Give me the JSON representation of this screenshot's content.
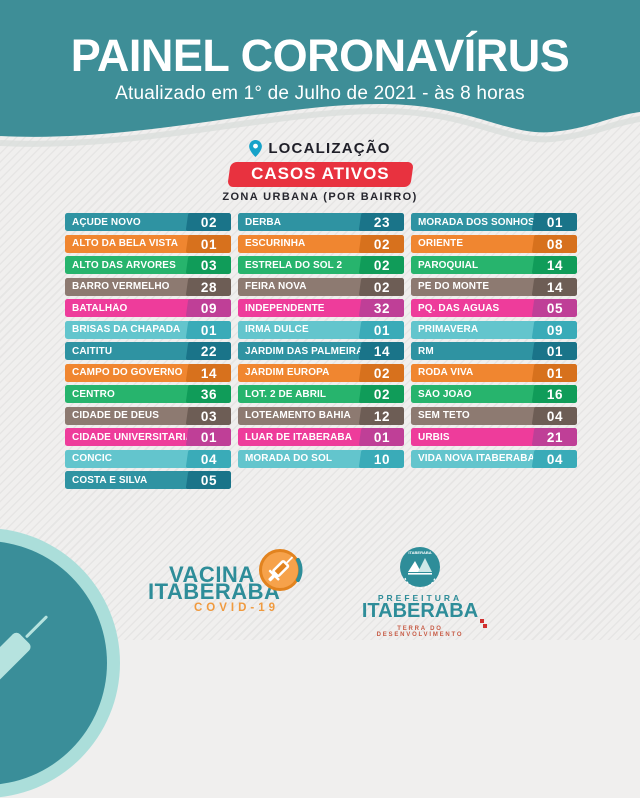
{
  "header": {
    "title": "PAINEL CORONAVÍRUS",
    "subtitle": "Atualizado em 1° de Julho de 2021 - às 8 horas",
    "background_color": "#3e8e97"
  },
  "location": {
    "label": "LOCALIZAÇÃO",
    "badge": "CASOS ATIVOS",
    "badge_color": "#e8323f",
    "zone": "ZONA URBANA (POR BAIRRO)"
  },
  "palette": {
    "teal": {
      "bar": "#2f93a2",
      "badge": "#1a7489"
    },
    "orange": {
      "bar": "#f08630",
      "badge": "#d7711d"
    },
    "green": {
      "bar": "#27b46d",
      "badge": "#109c59"
    },
    "taupe": {
      "bar": "#8d7a71",
      "badge": "#6d5d55"
    },
    "magenta": {
      "bar": "#ee3c9b",
      "badge": "#bf3f97"
    },
    "cyan": {
      "bar": "#63c5cd",
      "badge": "#3aabb8"
    }
  },
  "color_cycle": [
    "teal",
    "orange",
    "green",
    "taupe",
    "magenta",
    "cyan"
  ],
  "columns": [
    {
      "rows": [
        {
          "name": "AÇUDE NOVO",
          "count": "02"
        },
        {
          "name": "ALTO DA BELA VISTA",
          "count": "01"
        },
        {
          "name": "ALTO DAS ÁRVORES",
          "count": "03"
        },
        {
          "name": "BARRO VERMELHO",
          "count": "28"
        },
        {
          "name": "BATALHÃO",
          "count": "09"
        },
        {
          "name": "BRISAS DA CHAPADA",
          "count": "01"
        },
        {
          "name": "CAITITU",
          "count": "22"
        },
        {
          "name": "CAMPO DO GOVERNO",
          "count": "14"
        },
        {
          "name": "CENTRO",
          "count": "36"
        },
        {
          "name": "CIDADE DE DEUS",
          "count": "03"
        },
        {
          "name": "CIDADE UNIVERSITÁRIA",
          "count": "01"
        },
        {
          "name": "CONCIC",
          "count": "04"
        },
        {
          "name": "COSTA E SILVA",
          "count": "05"
        }
      ]
    },
    {
      "rows": [
        {
          "name": "DERBA",
          "count": "23"
        },
        {
          "name": "ESCURINHA",
          "count": "02"
        },
        {
          "name": "ESTRELA DO SOL 2",
          "count": "02"
        },
        {
          "name": "FEIRA NOVA",
          "count": "02"
        },
        {
          "name": "INDEPENDENTE",
          "count": "32"
        },
        {
          "name": "IRMÃ DULCE",
          "count": "01"
        },
        {
          "name": "JARDIM DAS PALMEIRAS",
          "count": "14"
        },
        {
          "name": "JARDIM EUROPA",
          "count": "02"
        },
        {
          "name": "LOT. 2 DE ABRIL",
          "count": "02"
        },
        {
          "name": "LOTEAMENTO BAHIA",
          "count": "12"
        },
        {
          "name": "LUAR DE ITABERABA",
          "count": "01"
        },
        {
          "name": "MORADA DO SOL",
          "count": "10"
        }
      ]
    },
    {
      "rows": [
        {
          "name": "MORADA DOS SONHOS",
          "count": "01"
        },
        {
          "name": "ORIENTE",
          "count": "08"
        },
        {
          "name": "PAROQUIAL",
          "count": "14"
        },
        {
          "name": "PÉ DO MONTE",
          "count": "14"
        },
        {
          "name": "PQ. DAS ÁGUAS",
          "count": "05"
        },
        {
          "name": "PRIMAVERA",
          "count": "09"
        },
        {
          "name": "RM",
          "count": "01"
        },
        {
          "name": "RODA VIVA",
          "count": "01"
        },
        {
          "name": "SÃO JOÃO",
          "count": "16"
        },
        {
          "name": "SEM TETO",
          "count": "04"
        },
        {
          "name": "URBIS",
          "count": "21"
        },
        {
          "name": "VIDA NOVA ITABERABA",
          "count": "04"
        }
      ]
    }
  ],
  "footer": {
    "vacina": {
      "line1": "VACINA",
      "line2": "ITABERABA",
      "line3": "COVID-19",
      "text_color": "#2e8d99",
      "covid_color": "#f09a3e"
    },
    "prefeitura": {
      "crest_text": "ITABERABA",
      "small": "PREFEITURA",
      "name": "ITABERABA",
      "tagline": "TERRA DO DESENVOLVIMENTO"
    }
  },
  "chart_data": {
    "type": "table",
    "title": "CASOS ATIVOS - ZONA URBANA (POR BAIRRO)",
    "columns": [
      "Bairro",
      "Casos ativos"
    ],
    "rows": [
      [
        "AÇUDE NOVO",
        2
      ],
      [
        "ALTO DA BELA VISTA",
        1
      ],
      [
        "ALTO DAS ÁRVORES",
        3
      ],
      [
        "BARRO VERMELHO",
        28
      ],
      [
        "BATALHÃO",
        9
      ],
      [
        "BRISAS DA CHAPADA",
        1
      ],
      [
        "CAITITU",
        22
      ],
      [
        "CAMPO DO GOVERNO",
        14
      ],
      [
        "CENTRO",
        36
      ],
      [
        "CIDADE DE DEUS",
        3
      ],
      [
        "CIDADE UNIVERSITÁRIA",
        1
      ],
      [
        "CONCIC",
        4
      ],
      [
        "COSTA E SILVA",
        5
      ],
      [
        "DERBA",
        23
      ],
      [
        "ESCURINHA",
        2
      ],
      [
        "ESTRELA DO SOL 2",
        2
      ],
      [
        "FEIRA NOVA",
        2
      ],
      [
        "INDEPENDENTE",
        32
      ],
      [
        "IRMÃ DULCE",
        1
      ],
      [
        "JARDIM DAS PALMEIRAS",
        14
      ],
      [
        "JARDIM EUROPA",
        2
      ],
      [
        "LOT. 2 DE ABRIL",
        2
      ],
      [
        "LOTEAMENTO BAHIA",
        12
      ],
      [
        "LUAR DE ITABERABA",
        1
      ],
      [
        "MORADA DO SOL",
        10
      ],
      [
        "MORADA DOS SONHOS",
        1
      ],
      [
        "ORIENTE",
        8
      ],
      [
        "PAROQUIAL",
        14
      ],
      [
        "PÉ DO MONTE",
        14
      ],
      [
        "PQ. DAS ÁGUAS",
        5
      ],
      [
        "PRIMAVERA",
        9
      ],
      [
        "RM",
        1
      ],
      [
        "RODA VIVA",
        1
      ],
      [
        "SÃO JOÃO",
        16
      ],
      [
        "SEM TETO",
        4
      ],
      [
        "URBIS",
        21
      ],
      [
        "VIDA NOVA ITABERABA",
        4
      ]
    ]
  }
}
